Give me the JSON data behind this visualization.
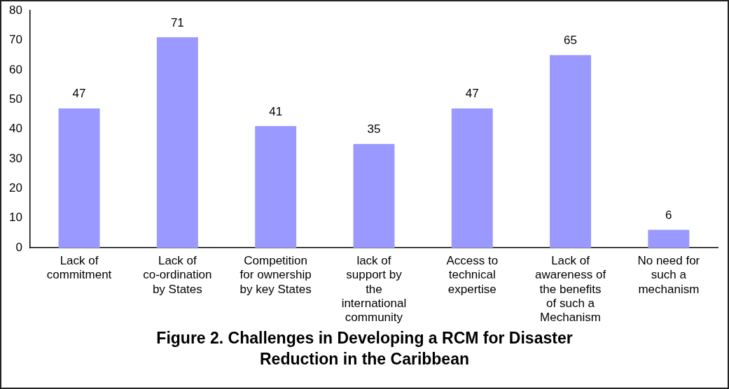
{
  "chart_data": {
    "type": "bar",
    "title": "Figure 2. Challenges in Developing a RCM for Disaster Reduction in the Caribbean",
    "categories": [
      "Lack of commitment",
      "Lack of co-ordination by States",
      "Competition for ownership by key States",
      "lack of support by the international community",
      "Access to technical expertise",
      "Lack of awareness of the benefits of such a Mechanism",
      "No need for such a mechanism"
    ],
    "values": [
      47,
      71,
      41,
      35,
      47,
      65,
      6
    ],
    "color": "#9999ff",
    "ylim": [
      0,
      80
    ],
    "yticks": [
      0,
      10,
      20,
      30,
      40,
      50,
      60,
      70,
      80
    ],
    "grid": false,
    "legend": false,
    "data_labels": true
  }
}
